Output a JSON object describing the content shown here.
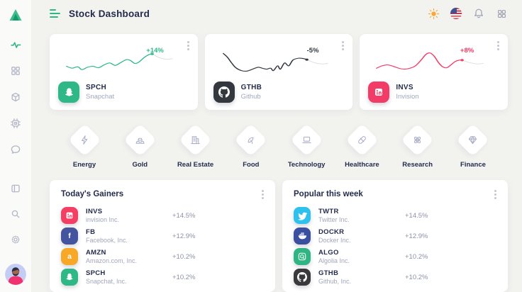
{
  "header": {
    "title": "Stock Dashboard",
    "icons": [
      "theme-sun",
      "language-us-flag",
      "notifications-bell",
      "apps-grid"
    ]
  },
  "sidebar": {
    "icons": [
      "logo-triangle",
      "activity",
      "dashboard-grid",
      "cube",
      "cpu",
      "chat",
      "layout-columns",
      "search",
      "settings-gear",
      "user-avatar"
    ]
  },
  "accent_color": "#2eb888",
  "cards": [
    {
      "symbol": "SPCH",
      "name": "Snapchat",
      "change": "+14%",
      "color": "#2eb888",
      "icon": "snapchat-icon",
      "spark": {
        "points": [
          [
            8,
            41
          ],
          [
            16,
            45
          ],
          [
            24,
            42
          ],
          [
            30,
            48
          ],
          [
            38,
            43
          ],
          [
            46,
            41
          ],
          [
            54,
            44
          ],
          [
            62,
            38
          ],
          [
            70,
            34
          ],
          [
            78,
            39
          ],
          [
            86,
            33
          ],
          [
            94,
            27
          ],
          [
            100,
            29
          ],
          [
            106,
            35
          ],
          [
            112,
            32
          ],
          [
            120,
            22
          ],
          [
            127,
            16
          ],
          [
            131,
            15
          ]
        ],
        "tail": [
          [
            131,
            15
          ],
          [
            140,
            22
          ],
          [
            151,
            26
          ],
          [
            160,
            25
          ]
        ]
      }
    },
    {
      "symbol": "GTHB",
      "name": "Github",
      "change": "-5%",
      "color": "#33383f",
      "icon": "github-icon",
      "spark": {
        "points": [
          [
            10,
            14
          ],
          [
            16,
            22
          ],
          [
            22,
            34
          ],
          [
            28,
            44
          ],
          [
            36,
            50
          ],
          [
            44,
            51
          ],
          [
            52,
            47
          ],
          [
            60,
            43
          ],
          [
            66,
            45
          ],
          [
            72,
            47
          ],
          [
            78,
            45
          ],
          [
            82,
            50
          ],
          [
            88,
            40
          ],
          [
            92,
            47
          ],
          [
            98,
            34
          ],
          [
            104,
            40
          ],
          [
            110,
            28
          ],
          [
            118,
            24
          ],
          [
            126,
            25
          ],
          [
            130,
            27
          ]
        ],
        "tail": [
          [
            130,
            27
          ],
          [
            140,
            33
          ],
          [
            151,
            36
          ],
          [
            160,
            35
          ]
        ]
      }
    },
    {
      "symbol": "INVS",
      "name": "Invision",
      "change": "+8%",
      "color": "#f23b66",
      "icon": "invision-icon",
      "spark": {
        "points": [
          [
            8,
            45
          ],
          [
            16,
            40
          ],
          [
            24,
            38
          ],
          [
            32,
            41
          ],
          [
            40,
            45
          ],
          [
            48,
            47
          ],
          [
            56,
            45
          ],
          [
            64,
            40
          ],
          [
            72,
            28
          ],
          [
            79,
            16
          ],
          [
            85,
            13
          ],
          [
            91,
            20
          ],
          [
            97,
            33
          ],
          [
            103,
            42
          ],
          [
            109,
            44
          ],
          [
            115,
            38
          ],
          [
            121,
            31
          ],
          [
            127,
            28
          ],
          [
            131,
            28
          ]
        ],
        "tail": [
          [
            131,
            28
          ],
          [
            141,
            33
          ],
          [
            153,
            36
          ],
          [
            161,
            35
          ]
        ]
      }
    }
  ],
  "categories": [
    {
      "label": "Energy",
      "icon": "energy-bolt-icon"
    },
    {
      "label": "Gold",
      "icon": "gold-ingot-icon"
    },
    {
      "label": "Real Estate",
      "icon": "building-icon"
    },
    {
      "label": "Food",
      "icon": "food-leaf-icon"
    },
    {
      "label": "Technology",
      "icon": "laptop-icon"
    },
    {
      "label": "Healthcare",
      "icon": "pill-icon"
    },
    {
      "label": "Research",
      "icon": "atom-icon"
    },
    {
      "label": "Finance",
      "icon": "gem-icon"
    }
  ],
  "panels": [
    {
      "title": "Today's Gainers",
      "rows": [
        {
          "symbol": "INVS",
          "name": "invision Inc.",
          "change": "+14.5%",
          "color": "#f43e64",
          "icon": "invision-icon"
        },
        {
          "symbol": "FB",
          "name": "Facebook, Inc.",
          "change": "+12.9%",
          "color": "#44549e",
          "icon": "facebook-icon",
          "glyph": "f"
        },
        {
          "symbol": "AMZN",
          "name": "Amazon.com, Inc.",
          "change": "+10.2%",
          "color": "#f7a827",
          "icon": "amazon-icon",
          "glyph": "a"
        },
        {
          "symbol": "SPCH",
          "name": "Snapchat, Inc.",
          "change": "+10.2%",
          "color": "#2eb886",
          "icon": "snapchat-icon"
        }
      ]
    },
    {
      "title": "Popular this week",
      "rows": [
        {
          "symbol": "TWTR",
          "name": "Twitter Inc.",
          "change": "+14.5%",
          "color": "#2fc1ee",
          "icon": "twitter-icon"
        },
        {
          "symbol": "DOCKR",
          "name": "Docker Inc.",
          "change": "+12.9%",
          "color": "#3a4fa0",
          "icon": "docker-icon"
        },
        {
          "symbol": "ALGO",
          "name": "Algolia Inc.",
          "change": "+10.2%",
          "color": "#2fb583",
          "icon": "algolia-icon"
        },
        {
          "symbol": "GTHB",
          "name": "Github, Inc.",
          "change": "+10.2%",
          "color": "#3a3a3c",
          "icon": "github-icon"
        }
      ]
    }
  ]
}
